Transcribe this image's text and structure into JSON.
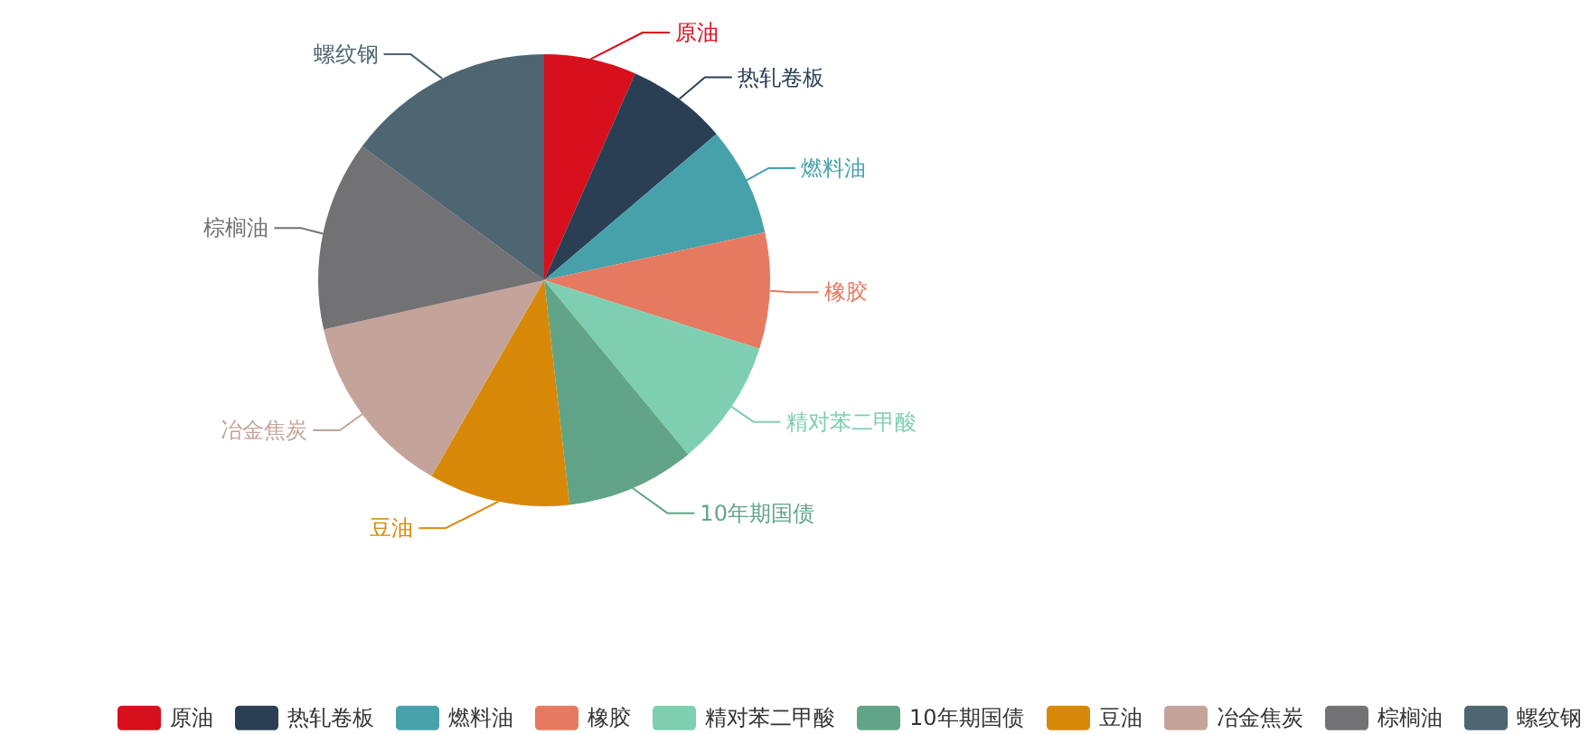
{
  "chart_data": {
    "type": "pie",
    "categories": [
      "原油",
      "热轧卷板",
      "燃料油",
      "橡胶",
      "精对苯二甲酸",
      "10年期国债",
      "豆油",
      "冶金焦炭",
      "棕榈油",
      "螺纹钢"
    ],
    "values": [
      6.6,
      7.2,
      7.8,
      8.3,
      9.1,
      9.2,
      10.1,
      13.2,
      13.6,
      14.9
    ],
    "colors": [
      "#d80f1c",
      "#2a3f54",
      "#47a1ab",
      "#e67a61",
      "#7ecfb2",
      "#62a487",
      "#d78806",
      "#c4a49a",
      "#727173",
      "#4e6572"
    ],
    "legend": "bottom"
  }
}
